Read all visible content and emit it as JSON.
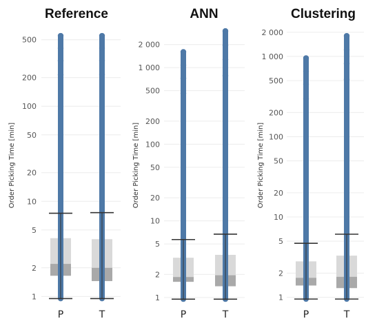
{
  "chart_data": [
    {
      "type": "boxplot",
      "title": "Reference",
      "ylabel": "Order Picking Time [min]",
      "yscale": "log",
      "ylim": [
        0.88,
        650
      ],
      "yticks": [
        1,
        2,
        5,
        10,
        20,
        50,
        100,
        200,
        500
      ],
      "yticklabels": [
        "1",
        "2",
        "5",
        "10",
        "20",
        "50",
        "100",
        "200",
        "500"
      ],
      "categories": [
        "P",
        "T"
      ],
      "boxes": [
        {
          "name": "P",
          "whisker_low": 0.95,
          "q1": 1.65,
          "median": 2.2,
          "q3": 4.1,
          "whisker_high": 7.5,
          "outlier_max": 550
        },
        {
          "name": "T",
          "whisker_low": 0.95,
          "q1": 1.45,
          "median": 2.0,
          "q3": 4.0,
          "whisker_high": 7.6,
          "outlier_max": 550
        }
      ]
    },
    {
      "type": "boxplot",
      "title": "ANN",
      "ylabel": "Order Picking Time [min]",
      "yscale": "log",
      "ylim": [
        0.88,
        3200
      ],
      "yticks": [
        1,
        2,
        5,
        10,
        20,
        50,
        100,
        200,
        500,
        1000,
        2000
      ],
      "yticklabels": [
        "1",
        "2",
        "5",
        "10",
        "20",
        "50",
        "100",
        "200",
        "500",
        "1 000",
        "2 000"
      ],
      "categories": [
        "P",
        "T"
      ],
      "boxes": [
        {
          "name": "P",
          "whisker_low": 0.95,
          "q1": 1.6,
          "median": 1.85,
          "q3": 3.3,
          "whisker_high": 5.7,
          "outlier_max": 1600
        },
        {
          "name": "T",
          "whisker_low": 0.95,
          "q1": 1.4,
          "median": 1.95,
          "q3": 3.6,
          "whisker_high": 6.7,
          "outlier_max": 3000
        }
      ]
    },
    {
      "type": "boxplot",
      "title": "Clustering",
      "ylabel": "Order Picking Time [min]",
      "yscale": "log",
      "ylim": [
        0.88,
        2200
      ],
      "yticks": [
        1,
        2,
        5,
        10,
        20,
        50,
        100,
        200,
        500,
        1000,
        2000
      ],
      "yticklabels": [
        "1",
        "2",
        "5",
        "10",
        "20",
        "50",
        "100",
        "200",
        "500",
        "1 000",
        "2 000"
      ],
      "categories": [
        "P",
        "T"
      ],
      "boxes": [
        {
          "name": "P",
          "whisker_low": 0.95,
          "q1": 1.4,
          "median": 1.75,
          "q3": 2.8,
          "whisker_high": 4.7,
          "outlier_max": 950
        },
        {
          "name": "T",
          "whisker_low": 0.95,
          "q1": 1.3,
          "median": 1.8,
          "q3": 3.3,
          "whisker_high": 6.1,
          "outlier_max": 1800
        }
      ]
    }
  ],
  "colors": {
    "outlier": "#4e79a7",
    "box_upper": "#d9d9d9",
    "box_lower": "#a9a9a9",
    "whisker": "#333333",
    "grid": "#ececec"
  }
}
